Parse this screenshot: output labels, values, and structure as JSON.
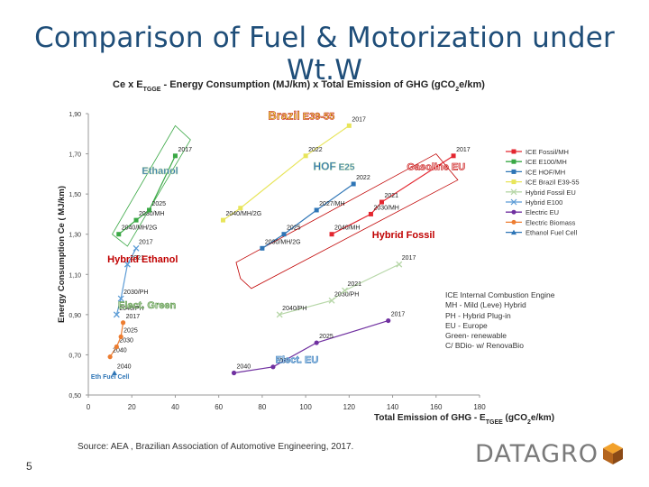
{
  "slide": {
    "title": "Comparison of Fuel & Motorization under Wt.W",
    "source": "Source: AEA , Brazilian Association of Automotive Engineering, 2017.",
    "page_number": "5",
    "brand": "DATAGRO",
    "abbreviations": [
      "ICE Internal Combustion Engine",
      "MH - Mild (Leve) Hybrid",
      "PH - Hybrid Plug-in",
      "EU - Europe",
      "Green- renewable",
      "C/ BDio- w/ RenovaBio"
    ]
  },
  "colors": {
    "title": "#1f4e79",
    "ice_fossil": "#e3262f",
    "ice_e100": "#3aa845",
    "ice_hof": "#2e75b6",
    "ice_brazil": "#e8e55a",
    "hybrid_fossil": "#b7d7a8",
    "hybrid_e100": "#5b9bd5",
    "electric_eu": "#7030a0",
    "electric_biomass": "#ed7d31",
    "ethanol_fuel_cell": "#2e75b6",
    "region_label_red": "#c00000",
    "region_label_green": "#4a8a3a"
  },
  "chart_data": {
    "type": "scatter",
    "title_parts": [
      "Ce x E",
      "TGGE",
      " - Energy Consumption  (MJ/km) x Total  Emission  of GHG  (gCO",
      "2",
      "e/km)"
    ],
    "xlabel_parts": [
      "Total Emission of GHG - E",
      "TGEE",
      "  (gCO",
      "2",
      "e/km)"
    ],
    "ylabel": "Energy Consumption Ce ( MJ/km)",
    "xlim": [
      0,
      180
    ],
    "ylim": [
      0.5,
      1.9
    ],
    "xticks": [
      0,
      20,
      40,
      60,
      80,
      100,
      120,
      140,
      160,
      180
    ],
    "yticks": [
      0.5,
      0.7,
      0.9,
      1.1,
      1.3,
      1.5,
      1.7,
      1.9
    ],
    "ytick_labels": [
      "0,50",
      "0,70",
      "0,90",
      "1,10",
      "1,30",
      "1,50",
      "1,70",
      "1,90"
    ],
    "series": [
      {
        "name": "ICE Fossil/MH",
        "color": "#e3262f",
        "marker": "square",
        "points": [
          {
            "x": 112,
            "y": 1.3,
            "label": "2040/MH"
          },
          {
            "x": 130,
            "y": 1.4,
            "label": "2030/MH"
          },
          {
            "x": 135,
            "y": 1.46,
            "label": "2021"
          },
          {
            "x": 168,
            "y": 1.69,
            "label": "2017"
          }
        ]
      },
      {
        "name": "ICE E100/MH",
        "color": "#3aa845",
        "marker": "square",
        "points": [
          {
            "x": 14,
            "y": 1.3,
            "label": "2040/MH/2G"
          },
          {
            "x": 22,
            "y": 1.37,
            "label": "2030/MH"
          },
          {
            "x": 28,
            "y": 1.42,
            "label": "2025"
          },
          {
            "x": 40,
            "y": 1.69,
            "label": "2017"
          }
        ]
      },
      {
        "name": "ICE HOF/MH",
        "color": "#2e75b6",
        "marker": "square",
        "points": [
          {
            "x": 80,
            "y": 1.23,
            "label": "2030/MH/2G"
          },
          {
            "x": 90,
            "y": 1.3,
            "label": "2025"
          },
          {
            "x": 105,
            "y": 1.42,
            "label": "2027/MH"
          },
          {
            "x": 122,
            "y": 1.55,
            "label": "2022"
          }
        ]
      },
      {
        "name": "ICE Brazil E39-55",
        "color": "#e8e55a",
        "marker": "square",
        "points": [
          {
            "x": 62,
            "y": 1.37,
            "label": "2040/MH/2G"
          },
          {
            "x": 70,
            "y": 1.43,
            "label": ""
          },
          {
            "x": 100,
            "y": 1.69,
            "label": "2022"
          },
          {
            "x": 120,
            "y": 1.84,
            "label": "2017"
          }
        ]
      },
      {
        "name": "Hybrid Fossil EU",
        "color": "#b7d7a8",
        "marker": "x",
        "points": [
          {
            "x": 88,
            "y": 0.9,
            "label": "2040/PH"
          },
          {
            "x": 112,
            "y": 0.97,
            "label": "2030/PH"
          },
          {
            "x": 118,
            "y": 1.02,
            "label": "2021"
          },
          {
            "x": 143,
            "y": 1.15,
            "label": "2017"
          }
        ]
      },
      {
        "name": "Hybrid E100",
        "color": "#5b9bd5",
        "marker": "x",
        "points": [
          {
            "x": 13,
            "y": 0.9,
            "label": "2040/PH"
          },
          {
            "x": 15,
            "y": 0.98,
            "label": "2030/PH"
          },
          {
            "x": 18,
            "y": 1.15,
            "label": "2021"
          },
          {
            "x": 22,
            "y": 1.23,
            "label": "2017"
          }
        ]
      },
      {
        "name": "Electric EU",
        "color": "#7030a0",
        "marker": "circle",
        "points": [
          {
            "x": 67,
            "y": 0.61,
            "label": "2040"
          },
          {
            "x": 85,
            "y": 0.64,
            "label": "2030"
          },
          {
            "x": 105,
            "y": 0.76,
            "label": "2025"
          },
          {
            "x": 138,
            "y": 0.87,
            "label": "2017"
          }
        ]
      },
      {
        "name": "Electric Biomass",
        "color": "#ed7d31",
        "marker": "circle",
        "points": [
          {
            "x": 10,
            "y": 0.69,
            "label": "2040"
          },
          {
            "x": 13,
            "y": 0.74,
            "label": "2030"
          },
          {
            "x": 15,
            "y": 0.79,
            "label": "2025"
          },
          {
            "x": 16,
            "y": 0.86,
            "label": "2017"
          }
        ]
      },
      {
        "name": "Ethanol Fuel Cell",
        "color": "#2e75b6",
        "marker": "triangle",
        "points": [
          {
            "x": 12,
            "y": 0.61,
            "label": "2040"
          }
        ]
      }
    ],
    "region_labels": [
      {
        "text": "Brazil",
        "suffix": "E39-55",
        "x": 98,
        "y": 1.87
      },
      {
        "text": "Ethanol",
        "suffix": "",
        "x": 33,
        "y": 1.6
      },
      {
        "text": "HOF",
        "suffix": "E25",
        "x": 113,
        "y": 1.62
      },
      {
        "text": "Gasoline EU",
        "suffix": "",
        "x": 160,
        "y": 1.62
      },
      {
        "text": "Hybrid Fossil",
        "suffix": "",
        "x": 145,
        "y": 1.28
      },
      {
        "text": "Hybrid Ethanol",
        "suffix": "",
        "x": 25,
        "y": 1.16
      },
      {
        "text": "Elect. Green",
        "suffix": "",
        "x": 27,
        "y": 0.93
      },
      {
        "text": "Elect. EU",
        "suffix": "",
        "x": 96,
        "y": 0.66
      },
      {
        "text": "Eth Fuel Cell",
        "suffix": "",
        "x": 10,
        "y": 0.58
      }
    ],
    "legend_position": "right"
  }
}
